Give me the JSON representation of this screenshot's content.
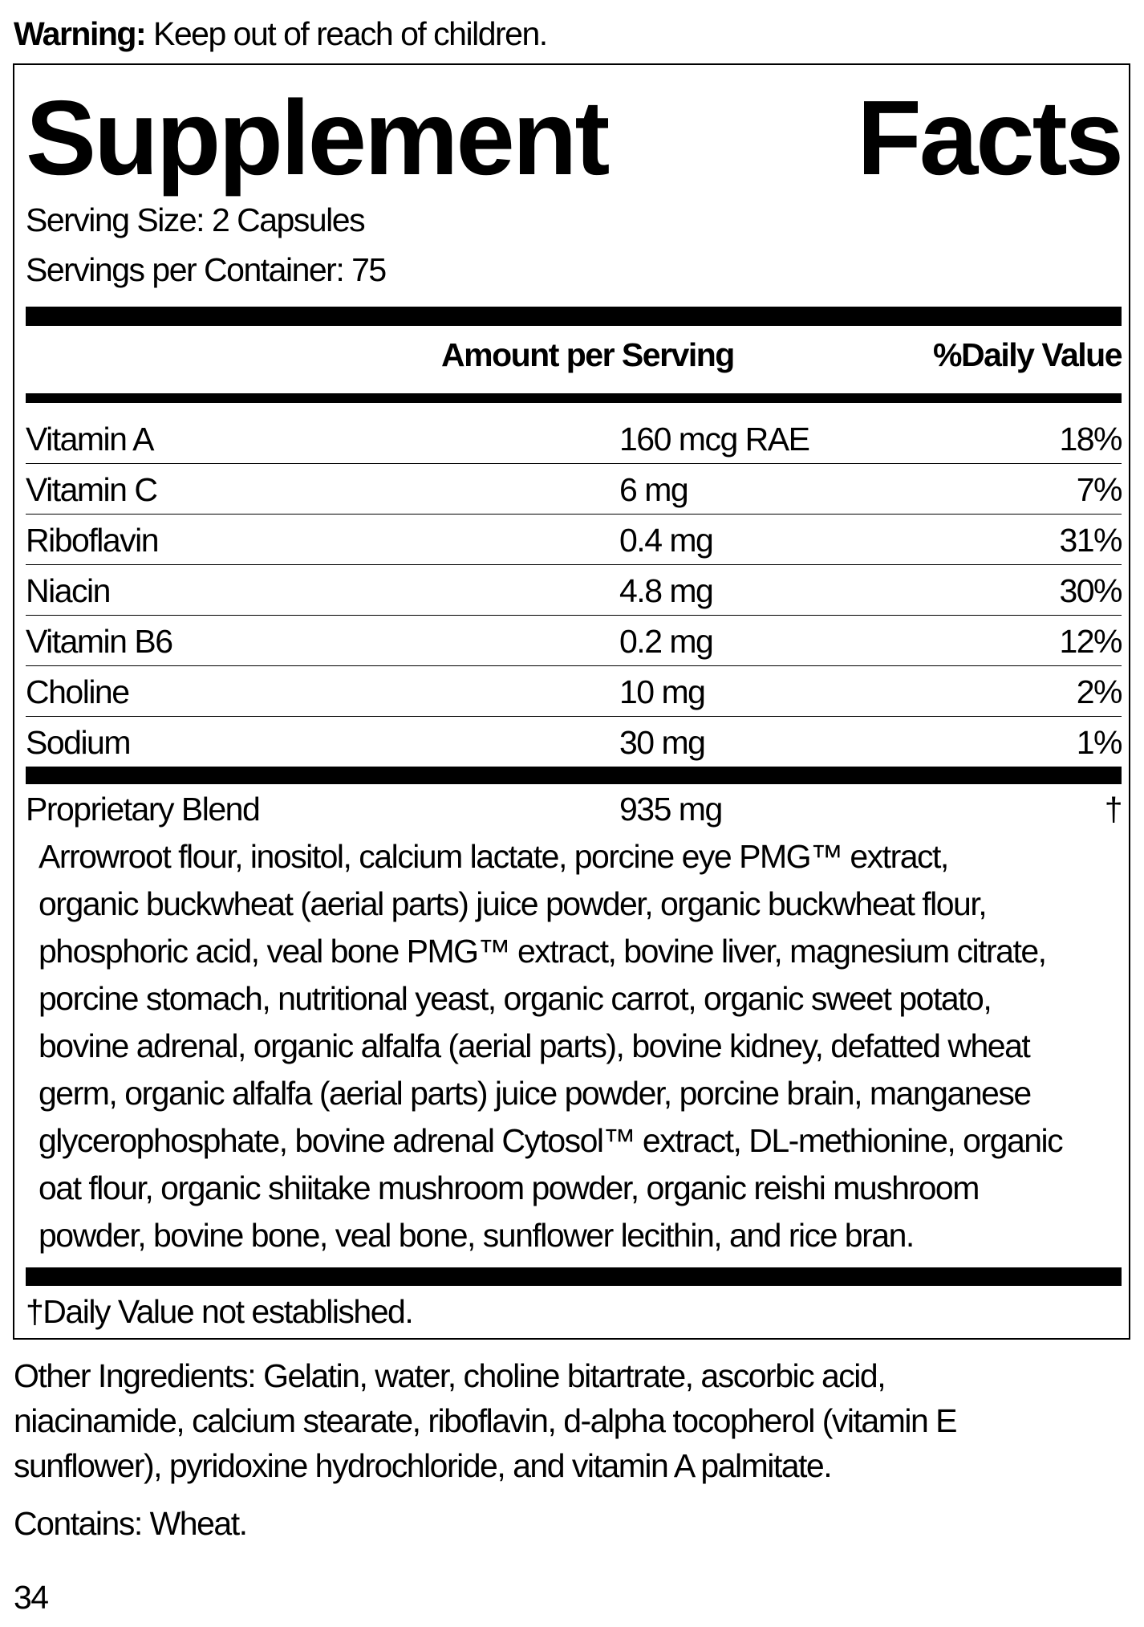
{
  "warning": {
    "label": "Warning:",
    "text": "Keep out of reach of children."
  },
  "title": {
    "word1": "Supplement",
    "word2": "Facts"
  },
  "serving_size": "Serving Size: 2 Capsules",
  "servings_per_container": "Servings per Container: 75",
  "header": {
    "amount": "Amount per Serving",
    "daily_value": "%Daily Value"
  },
  "nutrients": [
    {
      "name": "Vitamin A",
      "amount": "160 mcg RAE",
      "dv": "18%"
    },
    {
      "name": "Vitamin C",
      "amount": "6 mg",
      "dv": "7%"
    },
    {
      "name": "Riboflavin",
      "amount": "0.4 mg",
      "dv": "31%"
    },
    {
      "name": "Niacin",
      "amount": "4.8 mg",
      "dv": "30%"
    },
    {
      "name": "Vitamin B6",
      "amount": "0.2 mg",
      "dv": "12%"
    },
    {
      "name": "Choline",
      "amount": "10 mg",
      "dv": "2%"
    },
    {
      "name": "Sodium",
      "amount": "30 mg",
      "dv": "1%"
    }
  ],
  "blend": {
    "name": "Proprietary Blend",
    "amount": "935 mg",
    "dv": "†",
    "ingredient_lines": [
      "Arrowroot flour, inositol, calcium lactate, porcine eye PMG™ extract,",
      "organic buckwheat (aerial parts) juice powder, organic buckwheat flour,",
      "phosphoric acid, veal bone PMG™ extract, bovine liver, magnesium citrate,",
      "porcine stomach, nutritional yeast, organic carrot, organic sweet potato,",
      "bovine adrenal, organic alfalfa (aerial parts), bovine kidney, defatted wheat",
      "germ, organic alfalfa (aerial parts) juice powder, porcine brain, manganese",
      "glycerophosphate, bovine adrenal Cytosol™ extract, DL-methionine, organic",
      "oat flour, organic shiitake mushroom powder, organic reishi mushroom",
      "powder, bovine bone, veal bone, sunflower lecithin, and rice bran."
    ]
  },
  "footnote": "†Daily Value not established.",
  "other_ingredients_lines": [
    "Other Ingredients: Gelatin, water, choline bitartrate, ascorbic acid,",
    "niacinamide, calcium stearate, riboflavin, d-alpha tocopherol (vitamin E",
    "sunflower), pyridoxine hydrochloride, and vitamin A palmitate."
  ],
  "contains": "Contains: Wheat.",
  "page_number": "34"
}
